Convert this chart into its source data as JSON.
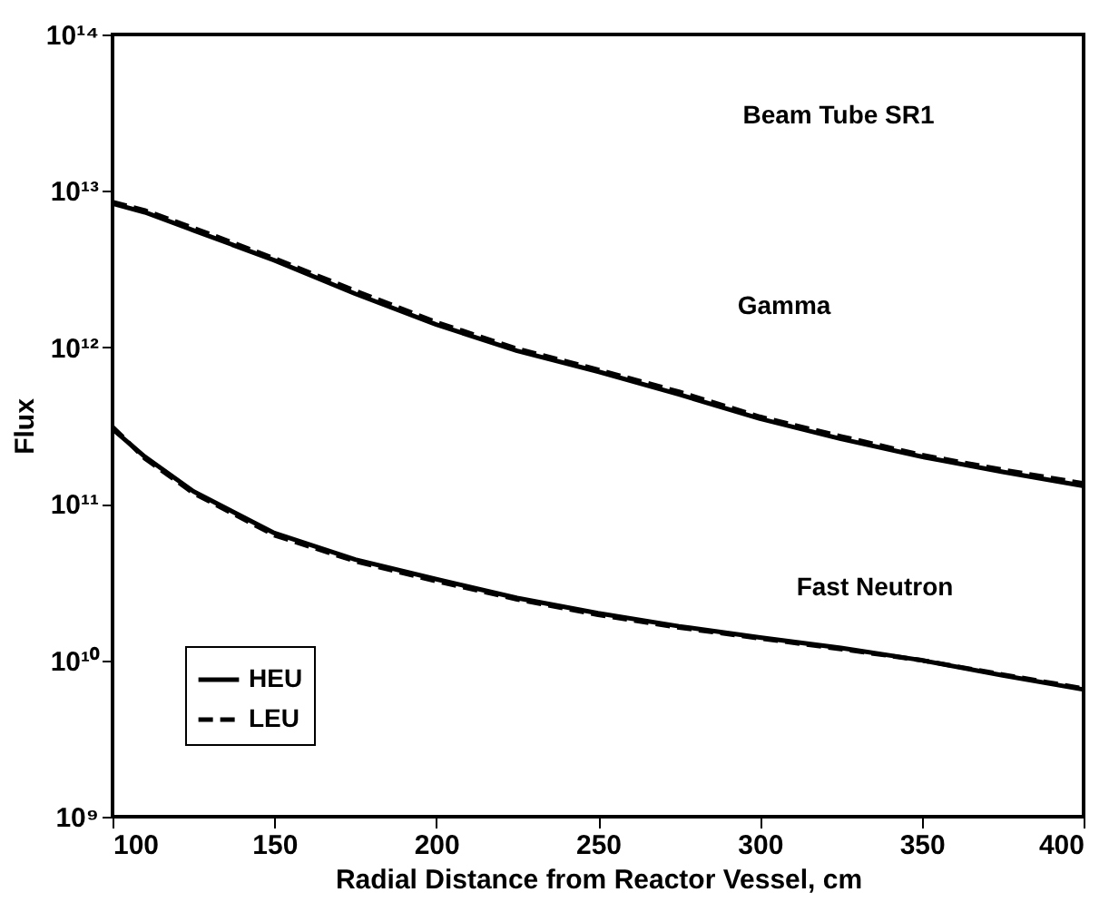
{
  "chart_data": {
    "type": "line",
    "xlabel": "Radial Distance from Reactor Vessel, cm",
    "ylabel": "Flux",
    "xlim": [
      100,
      400
    ],
    "xticks": [
      100,
      150,
      200,
      250,
      300,
      350,
      400
    ],
    "ylim": [
      1000000000.0,
      100000000000000.0
    ],
    "log": true,
    "grid": false,
    "legend": "bottom left",
    "yticks": [
      {
        "value": 1000000000.0,
        "label": "10⁹"
      },
      {
        "value": 10000000000.0,
        "label": "10¹⁰"
      },
      {
        "value": 100000000000.0,
        "label": "10¹¹"
      },
      {
        "value": 1000000000000.0,
        "label": "10¹²"
      },
      {
        "value": 10000000000000.0,
        "label": "10¹³"
      },
      {
        "value": 100000000000000.0,
        "label": "10¹⁴"
      }
    ],
    "x": [
      100,
      110,
      125,
      150,
      175,
      200,
      225,
      250,
      275,
      300,
      325,
      350,
      375,
      400
    ],
    "series": [
      {
        "name": "HEU",
        "color": "#000000",
        "line_style": "solid",
        "values": [
          8300000000000.0,
          7300000000000.0,
          5600000000000.0,
          3600000000000.0,
          2200000000000.0,
          1400000000000.0,
          950000000000.0,
          700000000000.0,
          500000000000.0,
          350000000000.0,
          260000000000.0,
          200000000000.0,
          160000000000.0,
          130000000000.0
        ]
      },
      {
        "name": "LEU",
        "color": "#000000",
        "line_style": "dashed",
        "values": [
          8500000000000.0,
          7500000000000.0,
          5800000000000.0,
          3700000000000.0,
          2300000000000.0,
          1450000000000.0,
          980000000000.0,
          720000000000.0,
          520000000000.0,
          360000000000.0,
          270000000000.0,
          205000000000.0,
          165000000000.0,
          135000000000.0
        ]
      },
      {
        "color": "#000000",
        "line_style": "solid",
        "values": [
          300000000000.0,
          200000000000.0,
          120000000000.0,
          65000000000.0,
          44000000000.0,
          33000000000.0,
          25000000000.0,
          20000000000.0,
          16500000000.0,
          14000000000.0,
          12000000000.0,
          10000000000.0,
          8000000000.0,
          6500000000.0
        ]
      },
      {
        "color": "#000000",
        "line_style": "dashed",
        "values": [
          310000000000.0,
          195000000000.0,
          117000000000.0,
          63000000000.0,
          43000000000.0,
          32000000000.0,
          24500000000.0,
          19500000000.0,
          16200000000.0,
          13800000000.0,
          11800000000.0,
          10000000000.0,
          8100000000.0,
          6600000000.0
        ]
      }
    ],
    "annotations": [
      "Beam Tube SR1",
      "Gamma",
      "Fast Neutron"
    ]
  }
}
